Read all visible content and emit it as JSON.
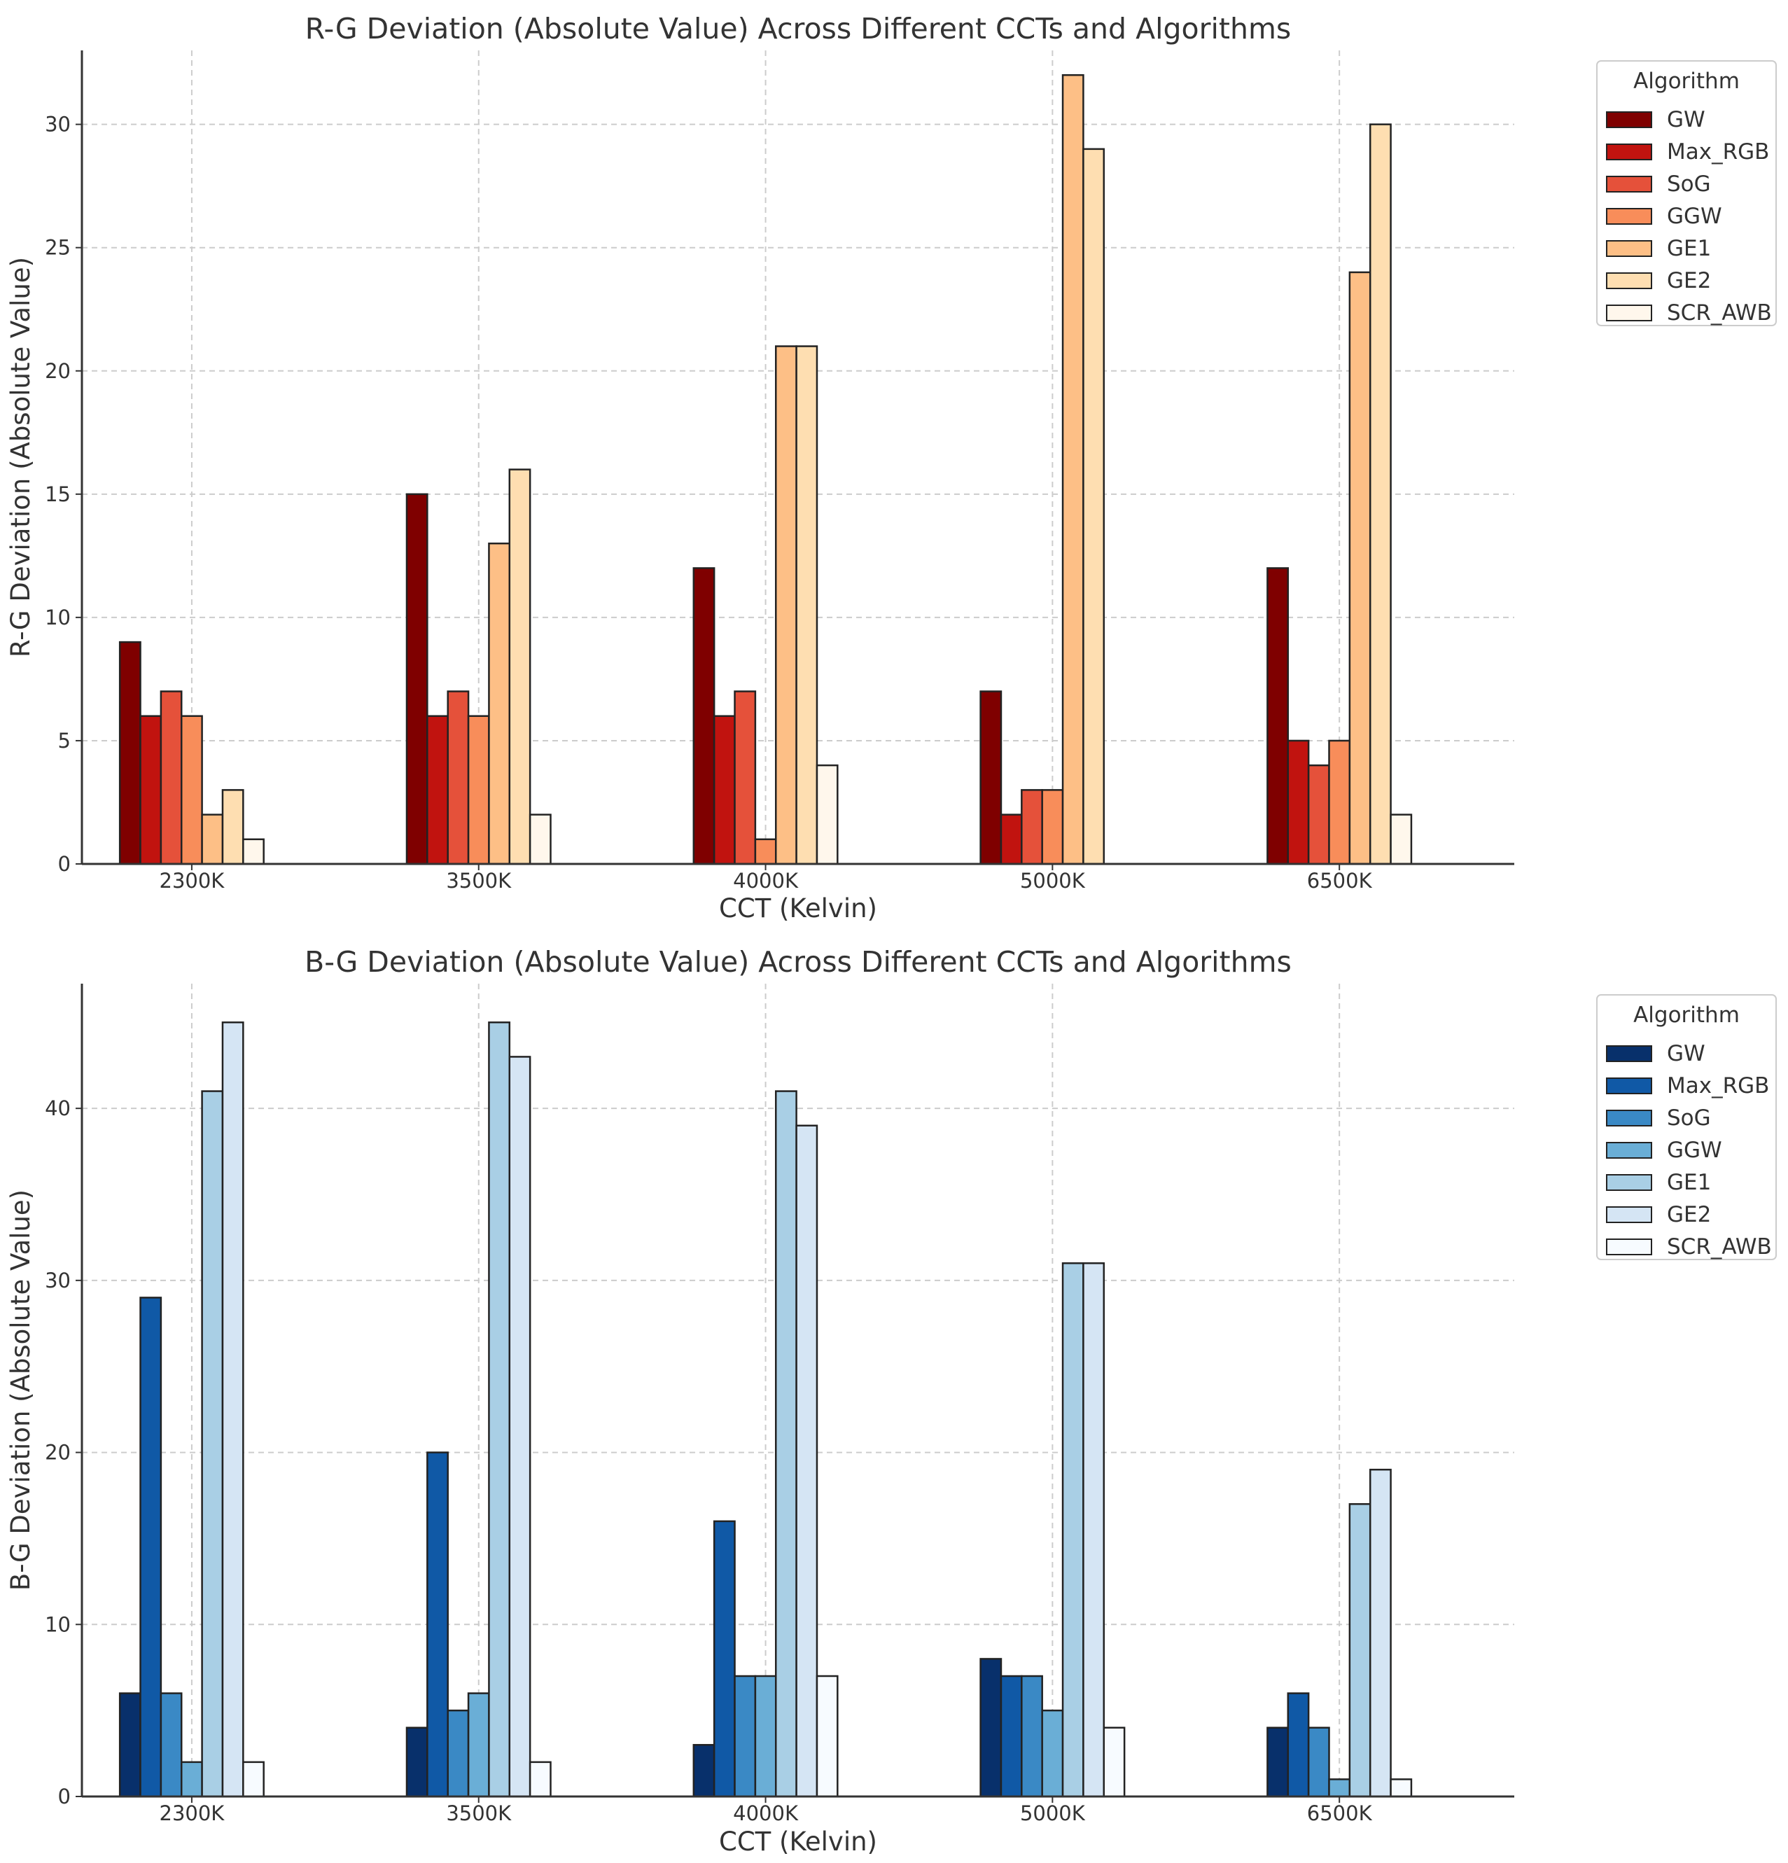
{
  "chart_data": [
    {
      "type": "bar",
      "title": "R-G Deviation (Absolute Value) Across Different CCTs and Algorithms",
      "xlabel": "CCT (Kelvin)",
      "ylabel": "R-G Deviation (Absolute Value)",
      "ylim": [
        0,
        33
      ],
      "yticks": [
        0,
        5,
        10,
        15,
        20,
        25,
        30
      ],
      "grid": true,
      "legend": {
        "title": "Algorithm",
        "position": "outside-right-top"
      },
      "categories": [
        "2300K",
        "3500K",
        "4000K",
        "5000K",
        "6500K"
      ],
      "series": [
        {
          "name": "GW",
          "color": "#7f0000",
          "values": [
            9,
            15,
            12,
            7,
            12
          ]
        },
        {
          "name": "Max_RGB",
          "color": "#c1130f",
          "values": [
            6,
            6,
            6,
            2,
            5
          ]
        },
        {
          "name": "SoG",
          "color": "#e5513a",
          "values": [
            7,
            7,
            7,
            3,
            4
          ]
        },
        {
          "name": "GGW",
          "color": "#f88d5a",
          "values": [
            6,
            6,
            1,
            3,
            5
          ]
        },
        {
          "name": "GE1",
          "color": "#fdbf86",
          "values": [
            2,
            13,
            21,
            32,
            24
          ]
        },
        {
          "name": "GE2",
          "color": "#fedeb1",
          "values": [
            3,
            16,
            21,
            29,
            30
          ]
        },
        {
          "name": "SCR_AWB",
          "color": "#fff7ec",
          "values": [
            1,
            2,
            4,
            0,
            2
          ]
        }
      ]
    },
    {
      "type": "bar",
      "title": "B-G Deviation (Absolute Value) Across Different CCTs and Algorithms",
      "xlabel": "CCT (Kelvin)",
      "ylabel": "B-G Deviation (Absolute Value)",
      "ylim": [
        0,
        47.25
      ],
      "yticks": [
        0,
        10,
        20,
        30,
        40
      ],
      "grid": true,
      "legend": {
        "title": "Algorithm",
        "position": "outside-right-top"
      },
      "categories": [
        "2300K",
        "3500K",
        "4000K",
        "5000K",
        "6500K"
      ],
      "series": [
        {
          "name": "GW",
          "color": "#08306b",
          "values": [
            6,
            4,
            3,
            8,
            4
          ]
        },
        {
          "name": "Max_RGB",
          "color": "#1059a6",
          "values": [
            29,
            20,
            16,
            7,
            6
          ]
        },
        {
          "name": "SoG",
          "color": "#3a89c5",
          "values": [
            6,
            5,
            7,
            7,
            4
          ]
        },
        {
          "name": "GGW",
          "color": "#6aaed6",
          "values": [
            2,
            6,
            7,
            5,
            1
          ]
        },
        {
          "name": "GE1",
          "color": "#a9cfe5",
          "values": [
            41,
            45,
            41,
            31,
            17
          ]
        },
        {
          "name": "GE2",
          "color": "#d5e5f4",
          "values": [
            45,
            43,
            39,
            31,
            19
          ]
        },
        {
          "name": "SCR_AWB",
          "color": "#f7fbff",
          "values": [
            2,
            2,
            7,
            4,
            1
          ]
        }
      ]
    }
  ]
}
